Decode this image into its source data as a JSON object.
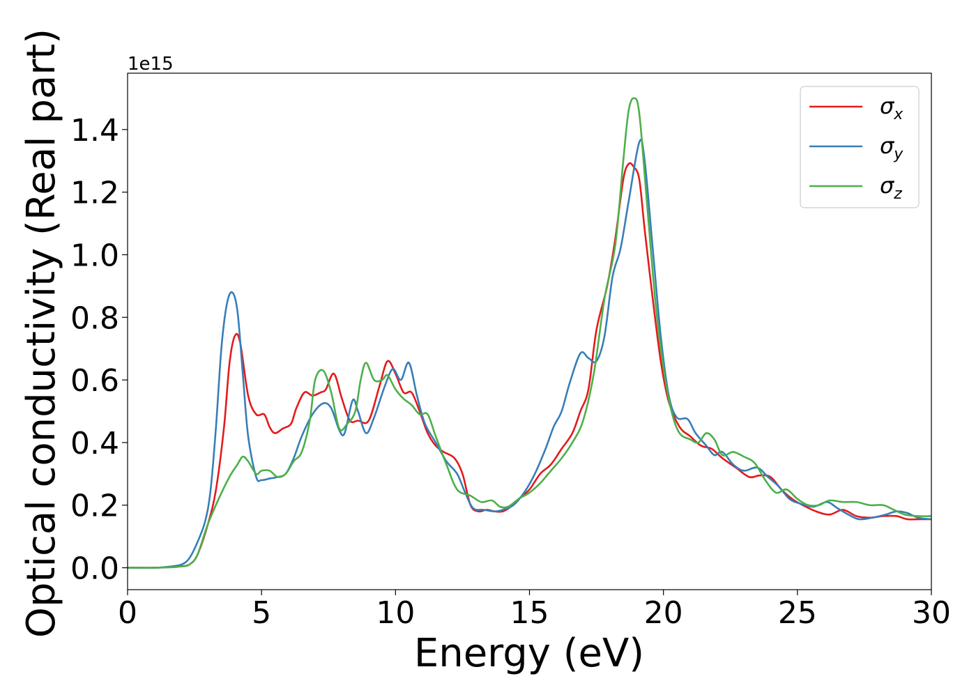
{
  "chart_data": {
    "type": "line",
    "xlabel": "Energy (eV)",
    "ylabel": "Optical conductivity (Real part)",
    "offset_label": "1e15",
    "xlim": [
      0,
      30
    ],
    "ylim": [
      -0.07,
      1.58
    ],
    "x_ticks": [
      0,
      5,
      10,
      15,
      20,
      25,
      30
    ],
    "x_tick_labels": [
      "0",
      "5",
      "10",
      "15",
      "20",
      "25",
      "30"
    ],
    "y_ticks": [
      0.0,
      0.2,
      0.4,
      0.6,
      0.8,
      1.0,
      1.2,
      1.4
    ],
    "y_tick_labels": [
      "0.0",
      "0.2",
      "0.4",
      "0.6",
      "0.8",
      "1.0",
      "1.2",
      "1.4"
    ],
    "grid": false,
    "legend_position": "top-right",
    "series": [
      {
        "name": "σx",
        "base": "σ",
        "sub": "x",
        "color": "#e41a1c",
        "points": [
          [
            0,
            0
          ],
          [
            1,
            0
          ],
          [
            1.5,
            0.002
          ],
          [
            2,
            0.005
          ],
          [
            2.3,
            0.01
          ],
          [
            2.6,
            0.04
          ],
          [
            3,
            0.14
          ],
          [
            3.3,
            0.25
          ],
          [
            3.6,
            0.45
          ],
          [
            3.8,
            0.65
          ],
          [
            4,
            0.74
          ],
          [
            4.2,
            0.72
          ],
          [
            4.5,
            0.55
          ],
          [
            4.8,
            0.49
          ],
          [
            5.1,
            0.49
          ],
          [
            5.3,
            0.45
          ],
          [
            5.5,
            0.43
          ],
          [
            5.8,
            0.445
          ],
          [
            6.1,
            0.46
          ],
          [
            6.3,
            0.51
          ],
          [
            6.6,
            0.56
          ],
          [
            6.9,
            0.55
          ],
          [
            7.2,
            0.56
          ],
          [
            7.4,
            0.57
          ],
          [
            7.7,
            0.62
          ],
          [
            8,
            0.54
          ],
          [
            8.3,
            0.47
          ],
          [
            8.6,
            0.47
          ],
          [
            9,
            0.47
          ],
          [
            9.4,
            0.58
          ],
          [
            9.7,
            0.66
          ],
          [
            10,
            0.62
          ],
          [
            10.3,
            0.56
          ],
          [
            10.6,
            0.56
          ],
          [
            10.9,
            0.5
          ],
          [
            11.2,
            0.43
          ],
          [
            11.5,
            0.39
          ],
          [
            11.8,
            0.37
          ],
          [
            12.2,
            0.35
          ],
          [
            12.5,
            0.3
          ],
          [
            12.8,
            0.2
          ],
          [
            13.1,
            0.18
          ],
          [
            13.4,
            0.185
          ],
          [
            13.7,
            0.18
          ],
          [
            14,
            0.18
          ],
          [
            14.3,
            0.195
          ],
          [
            14.6,
            0.22
          ],
          [
            15,
            0.25
          ],
          [
            15.4,
            0.3
          ],
          [
            15.8,
            0.33
          ],
          [
            16.2,
            0.38
          ],
          [
            16.6,
            0.43
          ],
          [
            16.9,
            0.5
          ],
          [
            17.2,
            0.57
          ],
          [
            17.5,
            0.76
          ],
          [
            17.9,
            0.9
          ],
          [
            18.2,
            1.05
          ],
          [
            18.5,
            1.24
          ],
          [
            18.7,
            1.29
          ],
          [
            18.9,
            1.28
          ],
          [
            19.1,
            1.24
          ],
          [
            19.3,
            1.08
          ],
          [
            19.6,
            0.86
          ],
          [
            19.9,
            0.66
          ],
          [
            20.2,
            0.53
          ],
          [
            20.6,
            0.45
          ],
          [
            21,
            0.42
          ],
          [
            21.4,
            0.39
          ],
          [
            21.8,
            0.38
          ],
          [
            22.2,
            0.35
          ],
          [
            22.7,
            0.32
          ],
          [
            23.2,
            0.29
          ],
          [
            23.6,
            0.295
          ],
          [
            24,
            0.29
          ],
          [
            24.4,
            0.25
          ],
          [
            24.8,
            0.22
          ],
          [
            25.2,
            0.2
          ],
          [
            25.7,
            0.18
          ],
          [
            26.2,
            0.17
          ],
          [
            26.7,
            0.185
          ],
          [
            27.2,
            0.165
          ],
          [
            27.7,
            0.16
          ],
          [
            28.2,
            0.165
          ],
          [
            28.7,
            0.165
          ],
          [
            29.1,
            0.155
          ],
          [
            29.6,
            0.155
          ],
          [
            30,
            0.155
          ]
        ]
      },
      {
        "name": "σy",
        "base": "σ",
        "sub": "y",
        "color": "#377eb8",
        "points": [
          [
            0,
            0
          ],
          [
            1,
            0
          ],
          [
            1.5,
            0.003
          ],
          [
            2,
            0.01
          ],
          [
            2.3,
            0.03
          ],
          [
            2.6,
            0.08
          ],
          [
            2.9,
            0.15
          ],
          [
            3.1,
            0.25
          ],
          [
            3.3,
            0.45
          ],
          [
            3.5,
            0.7
          ],
          [
            3.7,
            0.84
          ],
          [
            3.9,
            0.88
          ],
          [
            4.1,
            0.82
          ],
          [
            4.3,
            0.62
          ],
          [
            4.5,
            0.42
          ],
          [
            4.8,
            0.29
          ],
          [
            5,
            0.28
          ],
          [
            5.3,
            0.285
          ],
          [
            5.6,
            0.29
          ],
          [
            5.9,
            0.3
          ],
          [
            6.2,
            0.35
          ],
          [
            6.5,
            0.42
          ],
          [
            6.9,
            0.49
          ],
          [
            7.3,
            0.525
          ],
          [
            7.6,
            0.51
          ],
          [
            7.9,
            0.44
          ],
          [
            8.1,
            0.43
          ],
          [
            8.4,
            0.535
          ],
          [
            8.6,
            0.5
          ],
          [
            8.9,
            0.43
          ],
          [
            9.2,
            0.48
          ],
          [
            9.6,
            0.58
          ],
          [
            9.9,
            0.635
          ],
          [
            10.2,
            0.6
          ],
          [
            10.5,
            0.655
          ],
          [
            10.8,
            0.55
          ],
          [
            11.1,
            0.46
          ],
          [
            11.5,
            0.4
          ],
          [
            11.9,
            0.34
          ],
          [
            12.3,
            0.3
          ],
          [
            12.6,
            0.24
          ],
          [
            12.9,
            0.19
          ],
          [
            13.3,
            0.185
          ],
          [
            13.7,
            0.18
          ],
          [
            14,
            0.185
          ],
          [
            14.4,
            0.2
          ],
          [
            14.8,
            0.24
          ],
          [
            15.2,
            0.3
          ],
          [
            15.6,
            0.38
          ],
          [
            15.9,
            0.45
          ],
          [
            16.2,
            0.5
          ],
          [
            16.5,
            0.59
          ],
          [
            16.9,
            0.685
          ],
          [
            17.2,
            0.67
          ],
          [
            17.5,
            0.66
          ],
          [
            17.8,
            0.74
          ],
          [
            18.1,
            0.93
          ],
          [
            18.4,
            1.02
          ],
          [
            18.7,
            1.17
          ],
          [
            19.1,
            1.36
          ],
          [
            19.3,
            1.3
          ],
          [
            19.6,
            1.02
          ],
          [
            19.9,
            0.74
          ],
          [
            20.2,
            0.55
          ],
          [
            20.5,
            0.48
          ],
          [
            20.9,
            0.475
          ],
          [
            21.2,
            0.43
          ],
          [
            21.6,
            0.39
          ],
          [
            21.9,
            0.36
          ],
          [
            22.2,
            0.37
          ],
          [
            22.6,
            0.33
          ],
          [
            23,
            0.31
          ],
          [
            23.5,
            0.32
          ],
          [
            23.9,
            0.29
          ],
          [
            24.3,
            0.26
          ],
          [
            24.7,
            0.22
          ],
          [
            25.1,
            0.205
          ],
          [
            25.6,
            0.195
          ],
          [
            26.1,
            0.21
          ],
          [
            26.5,
            0.19
          ],
          [
            26.9,
            0.17
          ],
          [
            27.3,
            0.155
          ],
          [
            27.8,
            0.16
          ],
          [
            28.3,
            0.17
          ],
          [
            28.7,
            0.18
          ],
          [
            29.1,
            0.175
          ],
          [
            29.5,
            0.16
          ],
          [
            30,
            0.155
          ]
        ]
      },
      {
        "name": "σz",
        "base": "σ",
        "sub": "z",
        "color": "#4daf4a",
        "points": [
          [
            0,
            0
          ],
          [
            1,
            0
          ],
          [
            1.5,
            0.001
          ],
          [
            2,
            0.004
          ],
          [
            2.3,
            0.01
          ],
          [
            2.6,
            0.04
          ],
          [
            3,
            0.14
          ],
          [
            3.4,
            0.22
          ],
          [
            3.8,
            0.29
          ],
          [
            4.1,
            0.33
          ],
          [
            4.3,
            0.355
          ],
          [
            4.5,
            0.34
          ],
          [
            4.8,
            0.3
          ],
          [
            5,
            0.31
          ],
          [
            5.3,
            0.31
          ],
          [
            5.6,
            0.29
          ],
          [
            5.9,
            0.3
          ],
          [
            6.2,
            0.34
          ],
          [
            6.5,
            0.37
          ],
          [
            6.8,
            0.47
          ],
          [
            7,
            0.6
          ],
          [
            7.3,
            0.63
          ],
          [
            7.6,
            0.56
          ],
          [
            7.9,
            0.445
          ],
          [
            8.2,
            0.46
          ],
          [
            8.5,
            0.5
          ],
          [
            8.7,
            0.6
          ],
          [
            8.9,
            0.655
          ],
          [
            9.2,
            0.6
          ],
          [
            9.5,
            0.6
          ],
          [
            9.7,
            0.615
          ],
          [
            10,
            0.57
          ],
          [
            10.3,
            0.54
          ],
          [
            10.6,
            0.52
          ],
          [
            10.9,
            0.49
          ],
          [
            11.2,
            0.49
          ],
          [
            11.5,
            0.42
          ],
          [
            11.9,
            0.33
          ],
          [
            12.3,
            0.25
          ],
          [
            12.8,
            0.23
          ],
          [
            13.2,
            0.21
          ],
          [
            13.6,
            0.215
          ],
          [
            13.9,
            0.195
          ],
          [
            14.2,
            0.195
          ],
          [
            14.6,
            0.22
          ],
          [
            15,
            0.24
          ],
          [
            15.4,
            0.27
          ],
          [
            15.8,
            0.31
          ],
          [
            16.2,
            0.35
          ],
          [
            16.6,
            0.4
          ],
          [
            17,
            0.47
          ],
          [
            17.4,
            0.62
          ],
          [
            17.8,
            0.86
          ],
          [
            18.2,
            1.03
          ],
          [
            18.5,
            1.3
          ],
          [
            18.7,
            1.46
          ],
          [
            18.9,
            1.5
          ],
          [
            19.1,
            1.45
          ],
          [
            19.4,
            1.15
          ],
          [
            19.7,
            0.85
          ],
          [
            20,
            0.64
          ],
          [
            20.3,
            0.5
          ],
          [
            20.6,
            0.43
          ],
          [
            21,
            0.41
          ],
          [
            21.3,
            0.4
          ],
          [
            21.6,
            0.43
          ],
          [
            21.9,
            0.41
          ],
          [
            22.2,
            0.36
          ],
          [
            22.6,
            0.37
          ],
          [
            23,
            0.355
          ],
          [
            23.4,
            0.335
          ],
          [
            23.8,
            0.28
          ],
          [
            24.2,
            0.24
          ],
          [
            24.6,
            0.25
          ],
          [
            25,
            0.22
          ],
          [
            25.4,
            0.2
          ],
          [
            25.8,
            0.2
          ],
          [
            26.2,
            0.215
          ],
          [
            26.7,
            0.21
          ],
          [
            27.2,
            0.21
          ],
          [
            27.7,
            0.2
          ],
          [
            28.2,
            0.2
          ],
          [
            28.6,
            0.185
          ],
          [
            29,
            0.17
          ],
          [
            29.5,
            0.165
          ],
          [
            30,
            0.165
          ]
        ]
      }
    ]
  }
}
